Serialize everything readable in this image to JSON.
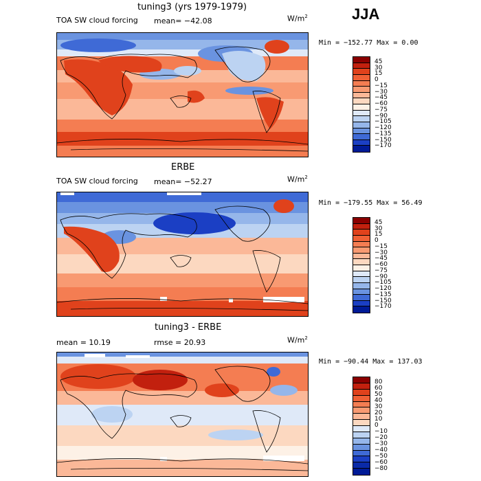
{
  "season": "JJA",
  "panels": [
    {
      "title": "tuning3 (yrs 1979-1979)",
      "variable": "TOA SW cloud forcing",
      "mean": "mean= −42.08",
      "units_base": "W/m",
      "units_exp": "2",
      "minmax": "Min = −152.77 Max =    0.00",
      "colorbar": {
        "labels": [
          "45",
          "30",
          "15",
          "0",
          "−15",
          "−30",
          "−45",
          "−60",
          "−75",
          "−90",
          "−105",
          "−120",
          "−135",
          "−150",
          "−170"
        ],
        "colors": [
          "#8b0000",
          "#c2200e",
          "#e0421c",
          "#ef6035",
          "#f47d52",
          "#f89a72",
          "#fbb898",
          "#fcd8c0",
          "#fdf1e6",
          "#dfe9f8",
          "#bcd3f2",
          "#95b6ea",
          "#6a93e0",
          "#3f6ad6",
          "#1b3fc4",
          "#001a96"
        ]
      }
    },
    {
      "title": "ERBE",
      "variable": "TOA SW cloud forcing",
      "mean": "mean= −52.27",
      "units_base": "W/m",
      "units_exp": "2",
      "minmax": "Min = −179.55 Max =  56.49",
      "colorbar": {
        "labels": [
          "45",
          "30",
          "15",
          "0",
          "−15",
          "−30",
          "−45",
          "−60",
          "−75",
          "−90",
          "−105",
          "−120",
          "−135",
          "−150",
          "−170"
        ],
        "colors": [
          "#8b0000",
          "#c2200e",
          "#e0421c",
          "#ef6035",
          "#f47d52",
          "#f89a72",
          "#fbb898",
          "#fcd8c0",
          "#fdf1e6",
          "#dfe9f8",
          "#bcd3f2",
          "#95b6ea",
          "#6a93e0",
          "#3f6ad6",
          "#1b3fc4",
          "#001a96"
        ]
      }
    },
    {
      "title": "tuning3 - ERBE",
      "mean": "mean =   10.19",
      "rmse": "rmse =   20.93",
      "units_base": "W/m",
      "units_exp": "2",
      "minmax": "Min = −90.44 Max = 137.03",
      "colorbar": {
        "labels": [
          "80",
          "60",
          "50",
          "40",
          "30",
          "20",
          "10",
          "0",
          "−10",
          "−20",
          "−30",
          "−40",
          "−50",
          "−60",
          "−80"
        ],
        "colors": [
          "#8b0000",
          "#c2200e",
          "#e0421c",
          "#ef6035",
          "#f47d52",
          "#f89a72",
          "#fbb898",
          "#fcd8c0",
          "#dfe9f8",
          "#bcd3f2",
          "#95b6ea",
          "#6a93e0",
          "#3f6ad6",
          "#1b3fc4",
          "#0a2aa8",
          "#001a96"
        ]
      }
    }
  ]
}
